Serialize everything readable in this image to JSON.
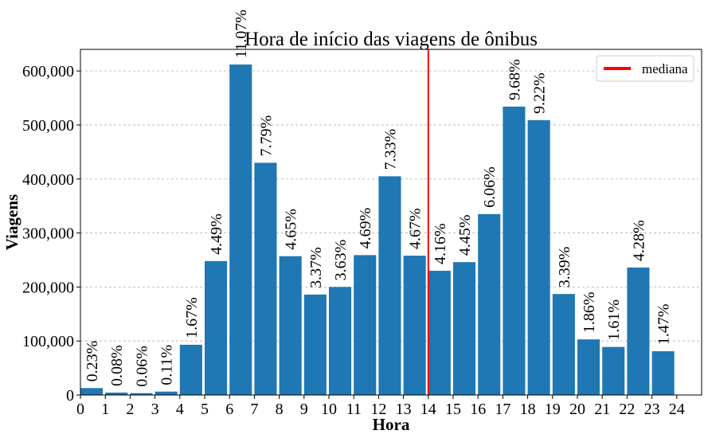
{
  "chart_data": {
    "type": "bar",
    "title": "Hora de início das viagens de ônibus",
    "xlabel": "Hora",
    "ylabel": "Viagens",
    "categories": [
      "0",
      "1",
      "2",
      "3",
      "4",
      "5",
      "6",
      "7",
      "8",
      "9",
      "10",
      "11",
      "12",
      "13",
      "14",
      "15",
      "16",
      "17",
      "18",
      "19",
      "20",
      "21",
      "22",
      "23"
    ],
    "values": [
      12800,
      4500,
      3400,
      6300,
      93000,
      248000,
      612000,
      430000,
      257000,
      186000,
      200000,
      259000,
      405000,
      258000,
      230000,
      246000,
      335000,
      534000,
      509000,
      187000,
      103000,
      89000,
      236000,
      81000
    ],
    "percent_labels": [
      "0.23%",
      "0.08%",
      "0.06%",
      "0.11%",
      "1.67%",
      "4.49%",
      "11.07%",
      "7.79%",
      "4.65%",
      "3.37%",
      "3.63%",
      "4.69%",
      "7.33%",
      "4.67%",
      "4.16%",
      "4.45%",
      "6.06%",
      "9.68%",
      "9.22%",
      "3.39%",
      "1.86%",
      "1.61%",
      "4.28%",
      "1.47%"
    ],
    "xticks": [
      "0",
      "1",
      "2",
      "3",
      "4",
      "5",
      "6",
      "7",
      "8",
      "9",
      "10",
      "11",
      "12",
      "13",
      "14",
      "15",
      "16",
      "17",
      "18",
      "19",
      "20",
      "21",
      "22",
      "23",
      "24"
    ],
    "xlim": [
      0,
      25
    ],
    "yticks": [
      "0",
      "100,000",
      "200,000",
      "300,000",
      "400,000",
      "500,000",
      "600,000"
    ],
    "ylim": [
      0,
      640000
    ],
    "grid": "y-dashed",
    "median": 14,
    "legend": {
      "label": "mediana",
      "placement": "top-right"
    },
    "colors": {
      "bar": "#1f77b4",
      "median": "#ff0000",
      "grid": "#b0b0b0"
    }
  }
}
